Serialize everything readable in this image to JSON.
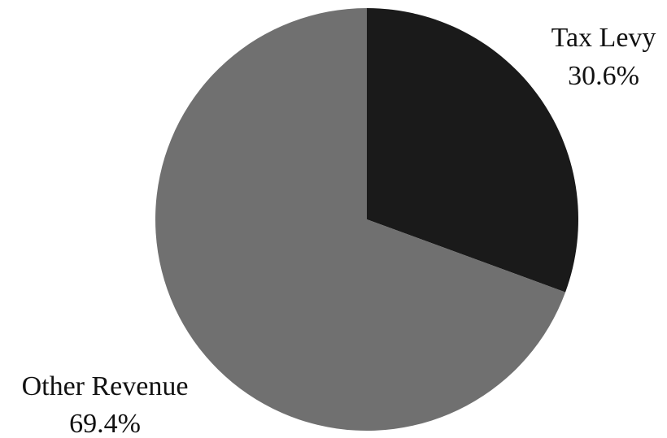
{
  "chart_data": {
    "type": "pie",
    "title": "",
    "slices": [
      {
        "label": "Tax Levy",
        "value": 30.6,
        "value_label": "30.6%",
        "color": "#1a1a1a"
      },
      {
        "label": "Other Revenue",
        "value": 69.4,
        "value_label": "69.4%",
        "color": "#707070"
      }
    ],
    "start_angle": "12 o'clock",
    "direction": "clockwise",
    "legend": "none",
    "labels": "outside slices, category name above percentage"
  }
}
